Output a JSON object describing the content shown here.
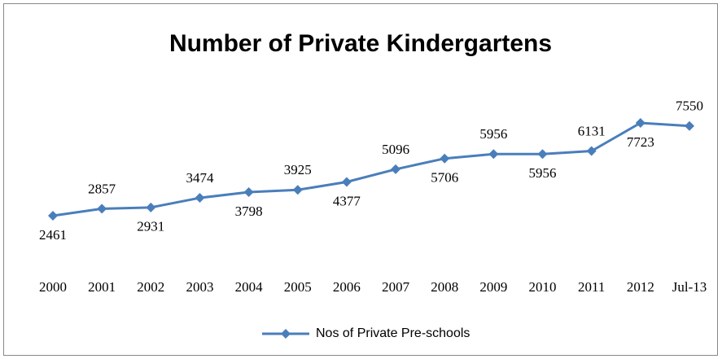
{
  "chart_data": {
    "type": "line",
    "title": "Number of Private Kindergartens",
    "categories": [
      "2000",
      "2001",
      "2002",
      "2003",
      "2004",
      "2005",
      "2006",
      "2007",
      "2008",
      "2009",
      "2010",
      "2011",
      "2012",
      "Jul-13"
    ],
    "series": [
      {
        "name": "Nos of Private Pre-schools",
        "color": "#4a7ebb",
        "values": [
          2461,
          2857,
          2931,
          3474,
          3798,
          3925,
          4377,
          5096,
          5706,
          5956,
          5956,
          6131,
          7723,
          7550
        ]
      }
    ],
    "legend": "bottom"
  }
}
